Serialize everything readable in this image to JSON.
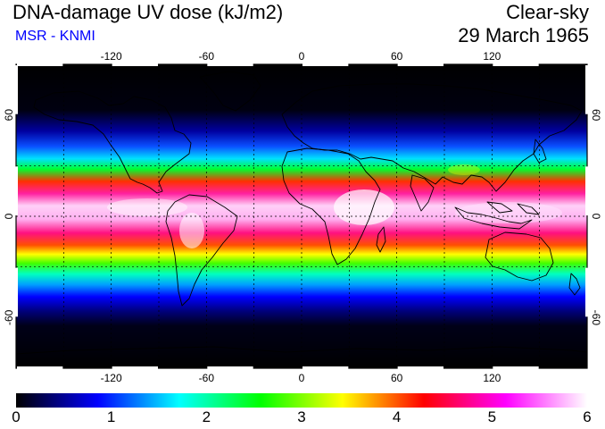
{
  "header": {
    "title": "DNA-damage UV dose (kJ/m2)",
    "subtitle": "MSR - KNMI",
    "scenario": "Clear-sky",
    "date": "29 March 1965"
  },
  "map": {
    "lon_ticks": [
      "-120",
      "-60",
      "0",
      "60",
      "120"
    ],
    "lon_values": [
      -120,
      -60,
      0,
      60,
      120
    ],
    "lat_ticks": [
      "60",
      "0",
      "-60"
    ],
    "lat_values": [
      60,
      0,
      -60
    ],
    "grid_lats": [
      30,
      0,
      -30
    ],
    "grid_lons": [
      -150,
      -120,
      -90,
      -60,
      -30,
      0,
      30,
      60,
      90,
      120,
      150
    ],
    "lon_range": [
      -180,
      180
    ],
    "lat_range": [
      -90,
      90
    ],
    "grid": true
  },
  "colorbar": {
    "labels": [
      "0",
      "1",
      "2",
      "3",
      "4",
      "5",
      "6"
    ],
    "min": 0,
    "max": 6,
    "stops": [
      "#000000",
      "#0000ff",
      "#00ffff",
      "#00ff00",
      "#ffff00",
      "#ff0000",
      "#ff00ff",
      "#ffffff"
    ]
  },
  "colors": {
    "subtitle": "#0000ff",
    "coastline": "#000000",
    "grid": "#000000"
  }
}
